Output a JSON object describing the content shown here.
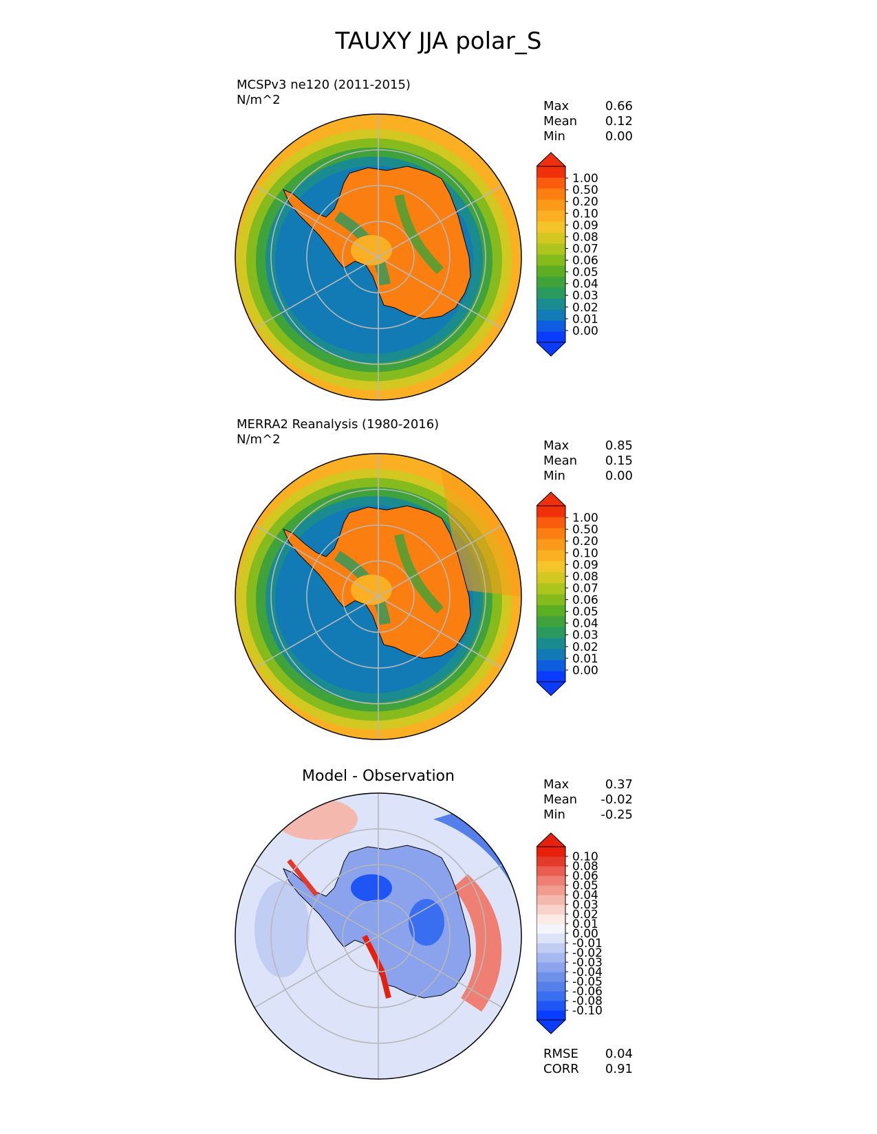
{
  "title": "TAUXY JJA polar_S",
  "colors": {
    "seq": [
      "#0a3cff",
      "#0e5ce0",
      "#127bb5",
      "#1a8c8f",
      "#2a9a5e",
      "#3fa23a",
      "#5cae22",
      "#86bb1e",
      "#aec51e",
      "#d3c722",
      "#f4c52a",
      "#fbb024",
      "#fa9a18",
      "#fa7f10",
      "#f85c0c",
      "#f0300a"
    ],
    "div": [
      "#0a3cff",
      "#1f55f5",
      "#3a6ef0",
      "#557fea",
      "#6e90e9",
      "#8aa3ec",
      "#a6b8f0",
      "#c2cdf4",
      "#dde3f8",
      "#f4f5fb",
      "#fbeae6",
      "#f8d2cb",
      "#f5b8ae",
      "#f29c90",
      "#ef7f72",
      "#eb5d50",
      "#e33a2c",
      "#e81f0a"
    ]
  },
  "stat_labels": {
    "max": "Max",
    "mean": "Mean",
    "min": "Min",
    "rmse": "RMSE",
    "corr": "CORR"
  },
  "panels": [
    {
      "title_line1": "MCSPv3 ne120 (2011-2015)",
      "title_line2": "N/m^2",
      "stats": {
        "max": "0.66",
        "mean": "0.12",
        "min": "0.00"
      },
      "colorbar_ticks": [
        "1.00",
        "0.50",
        "0.20",
        "0.10",
        "0.09",
        "0.08",
        "0.07",
        "0.06",
        "0.05",
        "0.04",
        "0.03",
        "0.02",
        "0.01",
        "0.00"
      ]
    },
    {
      "title_line1": "MERRA2 Reanalysis (1980-2016)",
      "title_line2": "N/m^2",
      "stats": {
        "max": "0.85",
        "mean": "0.15",
        "min": "0.00"
      },
      "colorbar_ticks": [
        "1.00",
        "0.50",
        "0.20",
        "0.10",
        "0.09",
        "0.08",
        "0.07",
        "0.06",
        "0.05",
        "0.04",
        "0.03",
        "0.02",
        "0.01",
        "0.00"
      ]
    },
    {
      "title": "Model - Observation",
      "stats": {
        "max": "0.37",
        "mean": "-0.02",
        "min": "-0.25",
        "rmse": "0.04",
        "corr": "0.91"
      },
      "colorbar_ticks": [
        "0.10",
        "0.08",
        "0.06",
        "0.05",
        "0.04",
        "0.03",
        "0.02",
        "0.01",
        "0.00",
        "-0.01",
        "-0.02",
        "-0.03",
        "-0.04",
        "-0.05",
        "-0.06",
        "-0.08",
        "-0.10"
      ]
    }
  ],
  "chart_data": [
    {
      "type": "heatmap",
      "projection": "south-polar-stereographic",
      "title": "MCSPv3 ne120 (2011-2015)",
      "units": "N/m^2",
      "levels": [
        0.0,
        0.01,
        0.02,
        0.03,
        0.04,
        0.05,
        0.06,
        0.07,
        0.08,
        0.09,
        0.1,
        0.2,
        0.5,
        1.0
      ],
      "max": 0.66,
      "mean": 0.12,
      "min": 0.0,
      "grid": true
    },
    {
      "type": "heatmap",
      "projection": "south-polar-stereographic",
      "title": "MERRA2 Reanalysis (1980-2016)",
      "units": "N/m^2",
      "levels": [
        0.0,
        0.01,
        0.02,
        0.03,
        0.04,
        0.05,
        0.06,
        0.07,
        0.08,
        0.09,
        0.1,
        0.2,
        0.5,
        1.0
      ],
      "max": 0.85,
      "mean": 0.15,
      "min": 0.0,
      "grid": true
    },
    {
      "type": "heatmap",
      "projection": "south-polar-stereographic",
      "title": "Model - Observation",
      "levels": [
        -0.1,
        -0.08,
        -0.06,
        -0.05,
        -0.04,
        -0.03,
        -0.02,
        -0.01,
        0.0,
        0.01,
        0.02,
        0.03,
        0.04,
        0.05,
        0.06,
        0.08,
        0.1
      ],
      "max": 0.37,
      "mean": -0.02,
      "min": -0.25,
      "rmse": 0.04,
      "corr": 0.91,
      "grid": true
    }
  ]
}
